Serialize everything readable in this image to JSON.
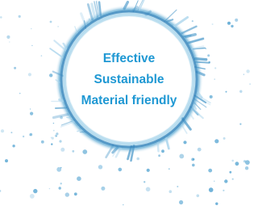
{
  "text": {
    "lines": [
      "Effective",
      "Sustainable",
      "Material friendly"
    ]
  }
}
